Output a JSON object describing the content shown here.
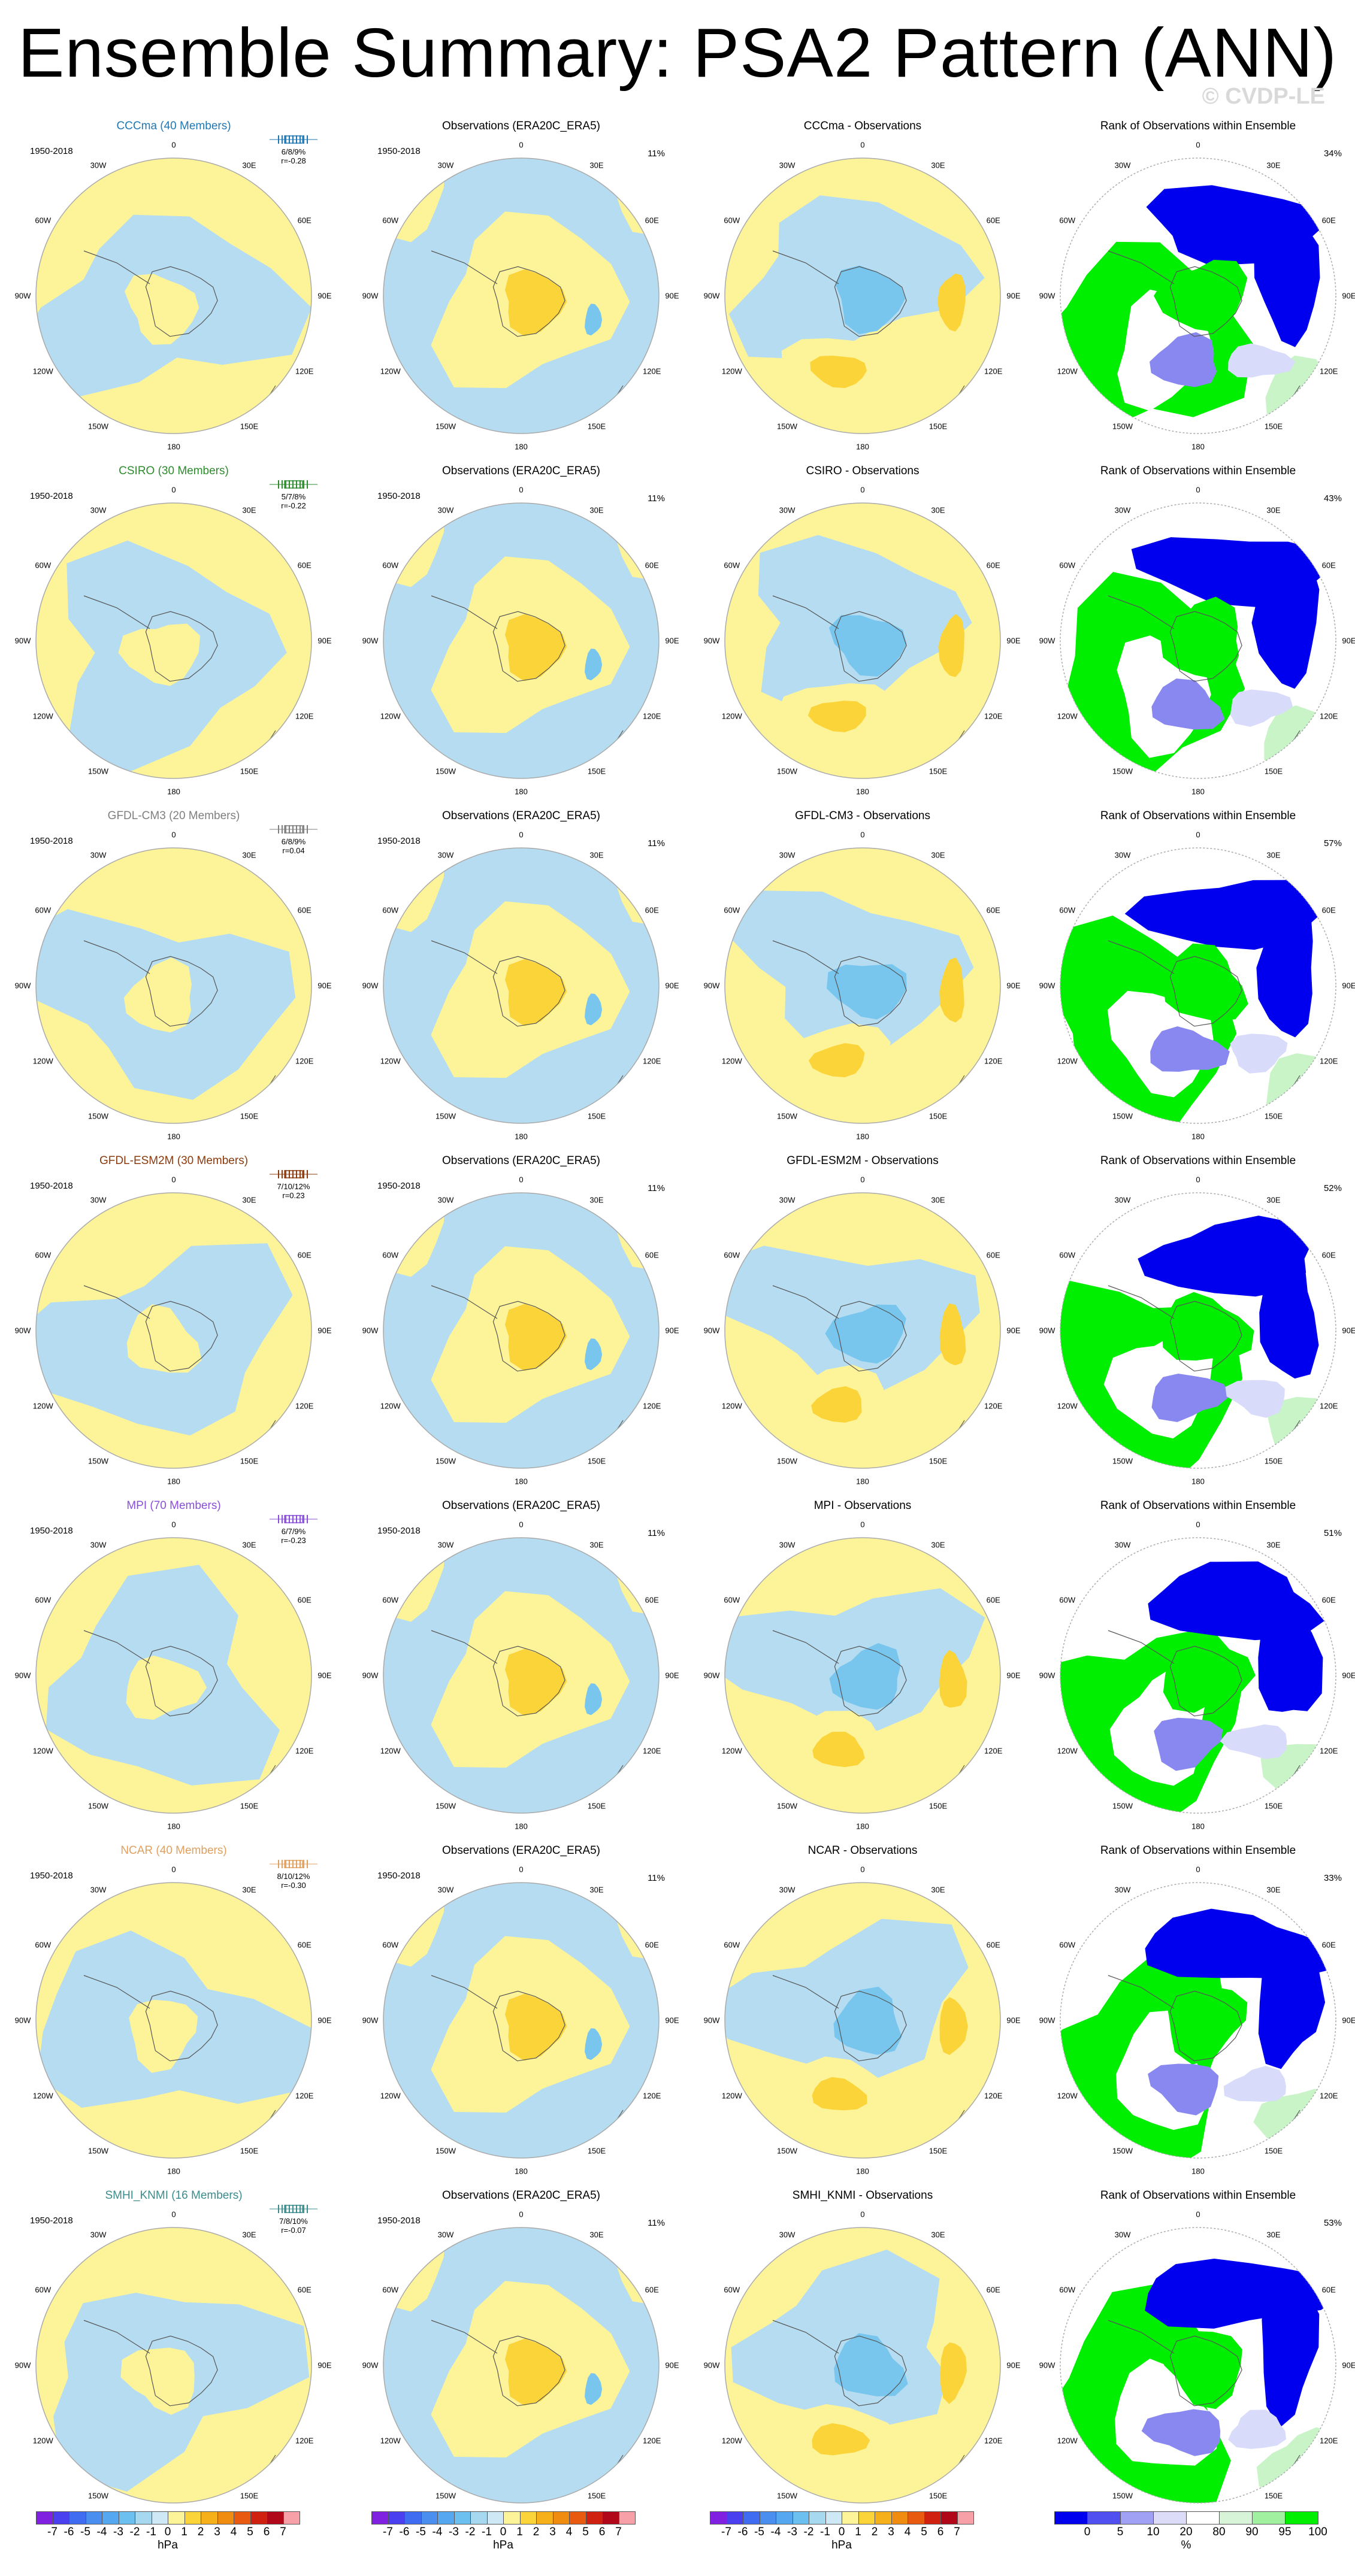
{
  "title": "Ensemble Summary: PSA2 Pattern (ANN)",
  "watermark": "© CVDP-LE",
  "period": "1950-2018",
  "lon_labels": [
    "0",
    "30E",
    "60E",
    "90E",
    "120E",
    "150E",
    "180",
    "150W",
    "120W",
    "90W",
    "60W",
    "30W"
  ],
  "obs_title": "Observations (ERA20C_ERA5)",
  "obs_pct": "11%",
  "rank_title": "Rank of Observations within Ensemble",
  "colors": {
    "fill_pos": "#fdf49a",
    "fill_neg": "#b5dcf0",
    "fill_pos2": "#fbd43a",
    "fill_neg2": "#78c6ee",
    "rank_low": "#0000ee",
    "rank_mid": "#8888f0",
    "rank_light": "#d8dcfa",
    "rank_high": "#00ee00",
    "rank_highlight": "#c8f4c8"
  },
  "models": [
    {
      "name": "CCCma (40 Members)",
      "color": "#1f77b4",
      "stats": "6/8/9%",
      "r": "r=-0.28",
      "diff_title": "CCCma - Observations",
      "rank_pct": "34%"
    },
    {
      "name": "CSIRO (30 Members)",
      "color": "#2e8b2e",
      "stats": "5/7/8%",
      "r": "r=-0.22",
      "diff_title": "CSIRO - Observations",
      "rank_pct": "43%"
    },
    {
      "name": "GFDL-CM3 (20 Members)",
      "color": "#7f7f7f",
      "stats": "6/8/9%",
      "r": "r=0.04",
      "diff_title": "GFDL-CM3 - Observations",
      "rank_pct": "57%"
    },
    {
      "name": "GFDL-ESM2M (30 Members)",
      "color": "#8b3a0e",
      "stats": "7/10/12%",
      "r": "r=0.23",
      "diff_title": "GFDL-ESM2M - Observations",
      "rank_pct": "52%"
    },
    {
      "name": "MPI (70 Members)",
      "color": "#8a4fd8",
      "stats": "6/7/9%",
      "r": "r=-0.23",
      "diff_title": "MPI - Observations",
      "rank_pct": "51%"
    },
    {
      "name": "NCAR (40 Members)",
      "color": "#e0a060",
      "stats": "8/10/12%",
      "r": "r=-0.30",
      "diff_title": "NCAR - Observations",
      "rank_pct": "33%"
    },
    {
      "name": "SMHI_KNMI (16 Members)",
      "color": "#3c8c8c",
      "stats": "7/8/10%",
      "r": "r=-0.07",
      "diff_title": "SMHI_KNMI - Observations",
      "rank_pct": "53%"
    }
  ],
  "colorbar_hpa": {
    "labels": [
      "-7",
      "-6",
      "-5",
      "-4",
      "-3",
      "-2",
      "-1",
      "0",
      "1",
      "2",
      "3",
      "4",
      "5",
      "6",
      "7"
    ],
    "unit": "hPa",
    "colors": [
      "#8020e0",
      "#4a40f0",
      "#3f6cf0",
      "#4a8ef0",
      "#55a8f0",
      "#6cc0f0",
      "#a6d8f0",
      "#cfe8f6",
      "#fdf49a",
      "#fbd43a",
      "#f6b01a",
      "#f08c10",
      "#e85a10",
      "#d02010",
      "#b00818",
      "#f8a0a8"
    ]
  },
  "colorbar_rank": {
    "labels": [
      "0",
      "5",
      "10",
      "20",
      "80",
      "90",
      "95",
      "100"
    ],
    "unit": "%",
    "colors": [
      "#0000ee",
      "#5050f0",
      "#a0a0f5",
      "#dcdcf8",
      "#ffffff",
      "#d8f4d8",
      "#a0f0a0",
      "#00ee00"
    ]
  }
}
